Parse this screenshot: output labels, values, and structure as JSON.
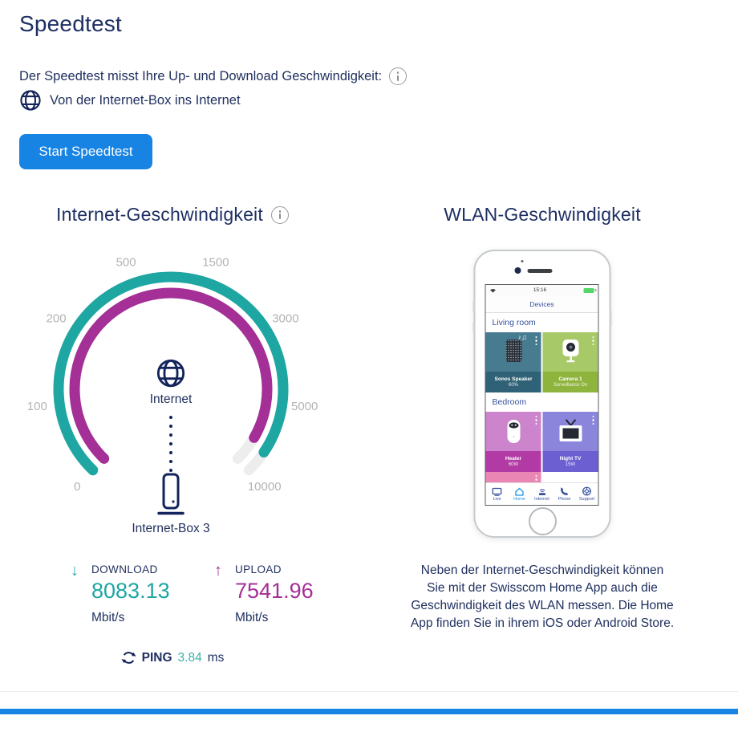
{
  "header": {
    "title": "Speedtest",
    "intro": "Der Speedtest misst Ihre Up- und Download Geschwindigkeit:",
    "connection": "Von der Internet-Box ins Internet",
    "start_button": "Start Speedtest"
  },
  "internet": {
    "title": "Internet-Geschwindigkeit",
    "gauge": {
      "scale": [
        0,
        100,
        200,
        500,
        1500,
        3000,
        5000,
        10000
      ],
      "scale_labels": [
        "0",
        "100",
        "200",
        "500",
        "1500",
        "3000",
        "5000",
        "10000"
      ],
      "center_top": "Internet",
      "center_bottom": "Internet-Box 3",
      "download_value": 8083.13,
      "upload_value": 7541.96,
      "colors": {
        "download": "#1ea6a3",
        "upload": "#a42f96",
        "track": "#ededed",
        "labels": "#b3b3b3"
      }
    },
    "download": {
      "label": "DOWNLOAD",
      "value": "8083.13",
      "unit": "Mbit/s",
      "arrow": "↓"
    },
    "upload": {
      "label": "UPLOAD",
      "value": "7541.96",
      "unit": "Mbit/s",
      "arrow": "↑"
    },
    "ping": {
      "label": "PING",
      "value": "3.84",
      "unit": "ms"
    }
  },
  "wlan": {
    "title": "WLAN-Geschwindigkeit",
    "phone": {
      "status_time": "15:16",
      "app_title": "Devices",
      "rooms": [
        {
          "name": "Living room",
          "tiles": [
            {
              "name": "Sonos Speaker",
              "status": "60%"
            },
            {
              "name": "Camera 1",
              "status": "Surveillance On"
            }
          ]
        },
        {
          "name": "Bedroom",
          "tiles": [
            {
              "name": "Heater",
              "status": "60W"
            },
            {
              "name": "Night TV",
              "status": "15W"
            }
          ]
        }
      ],
      "nav": [
        {
          "label": "Live"
        },
        {
          "label": "Home"
        },
        {
          "label": "Internet"
        },
        {
          "label": "Phone"
        },
        {
          "label": "Support"
        }
      ],
      "active_nav": "Home",
      "music_notes": "♪♫"
    },
    "description_lines": [
      "Neben der Internet-Geschwindigkeit können",
      "Sie mit der Swisscom Home App auch die",
      "Geschwindigkeit des WLAN messen. Die Home",
      "App finden Sie in ihrem iOS oder Android Store."
    ]
  },
  "theme": {
    "accent_blue": "#1783e3",
    "navy_text": "#20305f",
    "teal": "#1ea6a3",
    "purple": "#a42f96"
  }
}
